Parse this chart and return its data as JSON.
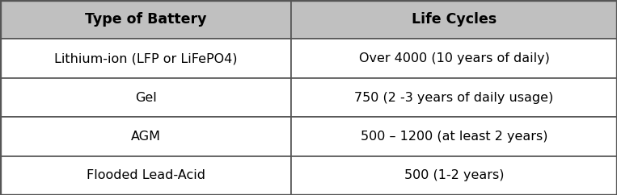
{
  "headers": [
    "Type of Battery",
    "Life Cycles"
  ],
  "rows": [
    [
      "Lithium-ion (LFP or LiFePO4)",
      "Over 4000 (10 years of daily)"
    ],
    [
      "Gel",
      "750 (2 -3 years of daily usage)"
    ],
    [
      "AGM",
      "500 – 1200 (at least 2 years)"
    ],
    [
      "Flooded Lead-Acid",
      "500 (1-2 years)"
    ]
  ],
  "header_bg": "#c0c0c0",
  "row_bg": "#ffffff",
  "border_color": "#555555",
  "header_text_color": "#000000",
  "row_text_color": "#000000",
  "header_fontsize": 12.5,
  "row_fontsize": 11.5,
  "col_split": 0.472,
  "fig_width": 7.63,
  "fig_height": 2.42,
  "dpi": 100
}
